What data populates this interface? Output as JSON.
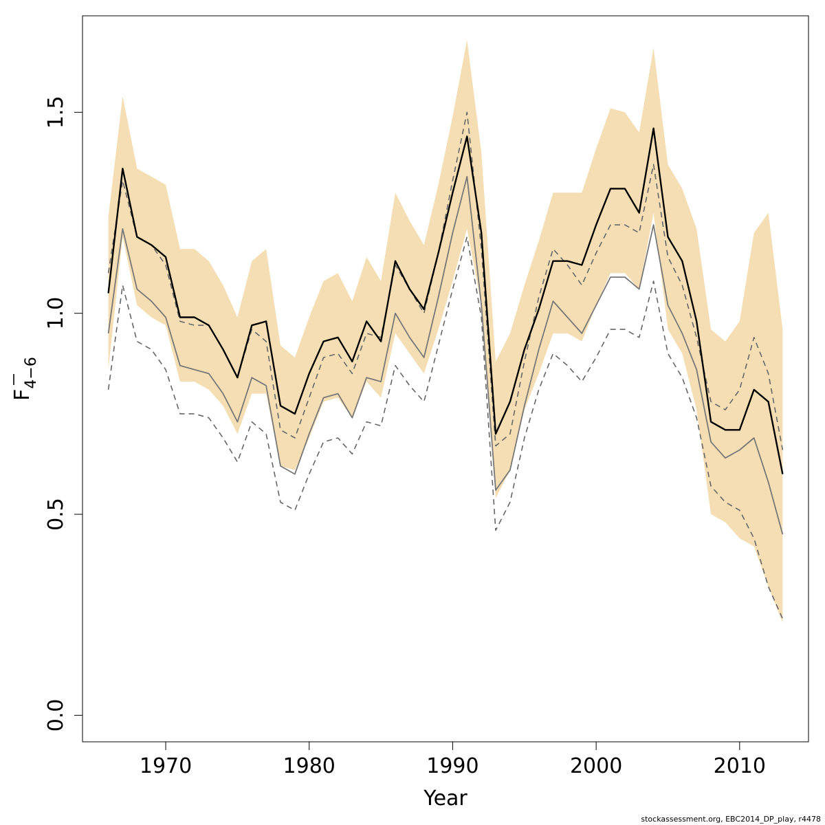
{
  "chart_data": {
    "type": "line",
    "xlabel": "Year",
    "ylabel": "F",
    "ylabel_subscript": "4−6",
    "xlim": [
      1964.2,
      2014.8
    ],
    "ylim": [
      -0.066,
      1.74
    ],
    "xticks": [
      {
        "value": 1970,
        "label": "1970"
      },
      {
        "value": 1980,
        "label": "1980"
      },
      {
        "value": 1990,
        "label": "1990"
      },
      {
        "value": 2000,
        "label": "2000"
      },
      {
        "value": 2010,
        "label": "2010"
      }
    ],
    "yticks": [
      {
        "value": 0.0,
        "label": "0.0"
      },
      {
        "value": 0.5,
        "label": "0.5"
      },
      {
        "value": 1.0,
        "label": "1.0"
      },
      {
        "value": 1.5,
        "label": "1.5"
      }
    ],
    "x": [
      1966,
      1967,
      1968,
      1969,
      1970,
      1971,
      1972,
      1973,
      1974,
      1975,
      1976,
      1977,
      1978,
      1979,
      1980,
      1981,
      1982,
      1983,
      1984,
      1985,
      1986,
      1987,
      1988,
      1989,
      1990,
      1991,
      1992,
      1993,
      1994,
      1995,
      1996,
      1997,
      1998,
      1999,
      2000,
      2001,
      2002,
      2003,
      2004,
      2005,
      2006,
      2007,
      2008,
      2009,
      2010,
      2011,
      2012,
      2013
    ],
    "band": {
      "color": "#f5deb3",
      "upper": [
        1.24,
        1.54,
        1.36,
        1.34,
        1.32,
        1.16,
        1.16,
        1.13,
        1.07,
        0.99,
        1.13,
        1.16,
        0.92,
        0.89,
        0.99,
        1.08,
        1.1,
        1.03,
        1.14,
        1.08,
        1.3,
        1.23,
        1.17,
        1.32,
        1.49,
        1.68,
        1.4,
        0.88,
        0.95,
        1.07,
        1.18,
        1.3,
        1.3,
        1.3,
        1.41,
        1.51,
        1.5,
        1.45,
        1.66,
        1.37,
        1.31,
        1.21,
        0.96,
        0.93,
        0.98,
        1.2,
        1.25,
        0.96
      ],
      "lower": [
        0.86,
        1.19,
        1.02,
        0.99,
        0.97,
        0.83,
        0.83,
        0.81,
        0.77,
        0.7,
        0.8,
        0.8,
        0.62,
        0.61,
        0.69,
        0.78,
        0.79,
        0.74,
        0.83,
        0.79,
        0.95,
        0.9,
        0.85,
        0.96,
        1.08,
        1.21,
        1.02,
        0.54,
        0.61,
        0.76,
        0.85,
        0.95,
        0.95,
        0.93,
        1.02,
        1.1,
        1.1,
        1.06,
        1.25,
        0.96,
        0.9,
        0.76,
        0.5,
        0.48,
        0.44,
        0.42,
        0.32,
        0.23
      ]
    },
    "series": [
      {
        "color": "#000000",
        "width": 2.4,
        "dash": "",
        "values": [
          1.05,
          1.36,
          1.19,
          1.17,
          1.14,
          0.99,
          0.99,
          0.97,
          0.91,
          0.84,
          0.97,
          0.98,
          0.77,
          0.75,
          0.85,
          0.93,
          0.94,
          0.88,
          0.98,
          0.93,
          1.13,
          1.06,
          1.01,
          1.15,
          1.3,
          1.44,
          1.2,
          0.7,
          0.78,
          0.91,
          1.01,
          1.13,
          1.13,
          1.12,
          1.22,
          1.31,
          1.31,
          1.25,
          1.46,
          1.19,
          1.13,
          0.98,
          0.73,
          0.71,
          0.71,
          0.81,
          0.78,
          0.6
        ]
      },
      {
        "color": "#777777",
        "width": 1.8,
        "dash": "",
        "values": [
          0.95,
          1.21,
          1.06,
          1.03,
          0.99,
          0.87,
          0.86,
          0.85,
          0.8,
          0.73,
          0.84,
          0.82,
          0.62,
          0.6,
          0.7,
          0.79,
          0.8,
          0.74,
          0.84,
          0.83,
          1.0,
          0.94,
          0.89,
          1.04,
          1.2,
          1.34,
          1.02,
          0.56,
          0.61,
          0.77,
          0.91,
          1.03,
          0.99,
          0.95,
          1.02,
          1.09,
          1.09,
          1.06,
          1.22,
          1.02,
          0.95,
          0.86,
          0.68,
          0.64,
          0.66,
          0.69,
          0.58,
          0.45
        ]
      },
      {
        "color": "#666666",
        "width": 1.6,
        "dash": "8 6",
        "values": [
          1.1,
          1.33,
          1.19,
          1.17,
          1.12,
          0.98,
          0.97,
          0.97,
          0.91,
          0.84,
          0.96,
          0.93,
          0.71,
          0.69,
          0.79,
          0.89,
          0.9,
          0.85,
          0.95,
          0.94,
          1.12,
          1.06,
          1.0,
          1.15,
          1.33,
          1.5,
          1.16,
          0.67,
          0.7,
          0.88,
          1.04,
          1.16,
          1.12,
          1.07,
          1.15,
          1.22,
          1.22,
          1.2,
          1.37,
          1.14,
          1.07,
          0.94,
          0.78,
          0.76,
          0.81,
          0.94,
          0.85,
          0.66
        ]
      },
      {
        "color": "#666666",
        "width": 1.6,
        "dash": "8 6",
        "values": [
          0.81,
          1.07,
          0.93,
          0.91,
          0.86,
          0.75,
          0.75,
          0.74,
          0.69,
          0.63,
          0.73,
          0.7,
          0.53,
          0.51,
          0.6,
          0.68,
          0.69,
          0.65,
          0.73,
          0.72,
          0.87,
          0.82,
          0.78,
          0.92,
          1.06,
          1.19,
          0.99,
          0.46,
          0.53,
          0.69,
          0.81,
          0.9,
          0.87,
          0.83,
          0.89,
          0.96,
          0.96,
          0.94,
          1.08,
          0.9,
          0.84,
          0.74,
          0.57,
          0.53,
          0.51,
          0.44,
          0.32,
          0.24
        ]
      }
    ]
  },
  "footer": {
    "text": "stockassessment.org, EBC2014_DP_play, r4478"
  }
}
